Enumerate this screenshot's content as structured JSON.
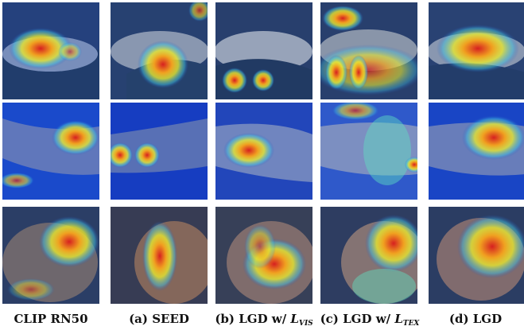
{
  "captions": [
    {
      "prefix": "CLIP RN50",
      "math": "",
      "sub": ""
    },
    {
      "prefix": "(a) SEED",
      "math": "",
      "sub": ""
    },
    {
      "prefix": "(b) LGD w/ ",
      "math": "L",
      "sub": "VIS"
    },
    {
      "prefix": "(c) LGD w/ ",
      "math": "L",
      "sub": "TEX"
    },
    {
      "prefix": "(d) LGD",
      "math": "",
      "sub": ""
    }
  ],
  "rows": [
    {
      "subject": "fish",
      "cells": [
        "hot-left-center",
        "hot-center",
        "two-spots-low",
        "two-spots-mid",
        "hot-wide-center"
      ]
    },
    {
      "subject": "shark",
      "cells": [
        "hot-right",
        "two-spots-left",
        "hot-center-left",
        "diffuse-right",
        "hot-center-right"
      ]
    },
    {
      "subject": "dog",
      "cells": [
        "hot-face",
        "hot-vertical",
        "hot-chest",
        "hot-face-top",
        "hot-face-right"
      ]
    }
  ]
}
